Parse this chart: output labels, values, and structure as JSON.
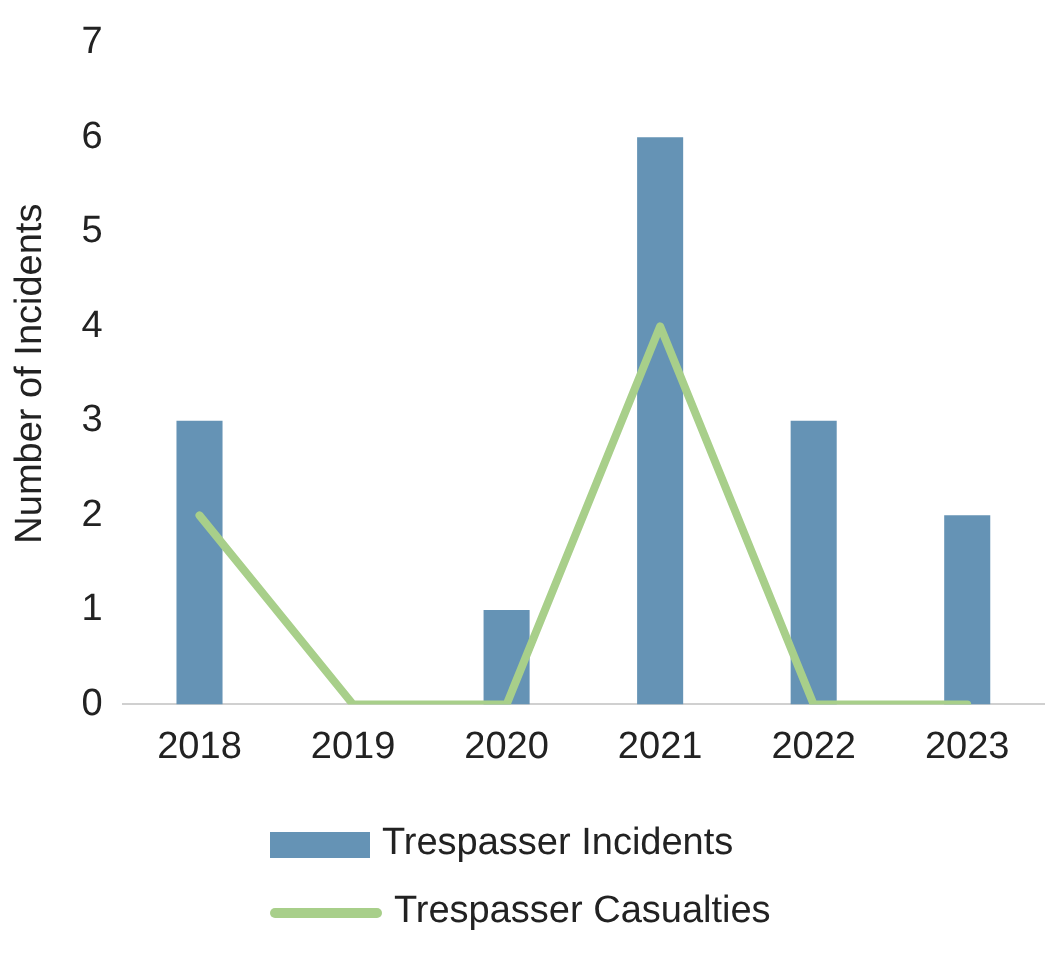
{
  "chart_data": {
    "type": "bar",
    "ylabel": "Number of Incidents",
    "categories": [
      "2018",
      "2019",
      "2020",
      "2021",
      "2022",
      "2023"
    ],
    "series": [
      {
        "name": "Trespasser Incidents",
        "color": "#6593b5",
        "values": [
          3,
          0,
          1,
          6,
          3,
          2
        ]
      },
      {
        "name": "Trespasser Casualties",
        "type": "line",
        "color": "#a8cf8a",
        "values": [
          2,
          0,
          0,
          4,
          0,
          0
        ]
      }
    ],
    "ylim": [
      0,
      7
    ],
    "yticks": [
      0,
      1,
      2,
      3,
      4,
      5,
      6,
      7
    ],
    "grid": false,
    "legend": "bottom",
    "marker": "none"
  }
}
